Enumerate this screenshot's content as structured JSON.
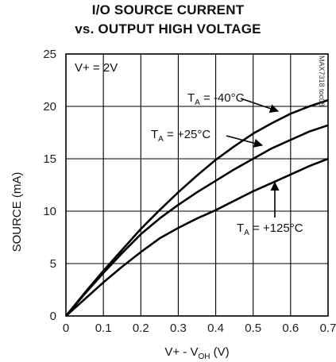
{
  "chart_data": {
    "type": "line",
    "title_line1": "I/O SOURCE CURRENT",
    "title_line2": "vs. OUTPUT HIGH VOLTAGE",
    "xlabel_prefix": "V+ - V",
    "xlabel_sub": "OH",
    "xlabel_suffix": " (V)",
    "ylabel": "SOURCE (mA)",
    "condition": "V+ = 2V",
    "code": "MAX7318 toc08",
    "xlim": [
      0,
      0.7
    ],
    "ylim": [
      0,
      25
    ],
    "grid": true,
    "xticks": [
      0,
      0.1,
      0.2,
      0.3,
      0.4,
      0.5,
      0.6,
      0.7
    ],
    "xtick_labels": [
      "0",
      "0.1",
      "0.2",
      "0.3",
      "0.4",
      "0.5",
      "0.6",
      "0.7"
    ],
    "yticks": [
      0,
      5,
      10,
      15,
      20,
      25
    ],
    "ytick_labels": [
      "0",
      "5",
      "10",
      "15",
      "20",
      "25"
    ],
    "series": [
      {
        "name": "T_A = -40°C",
        "label_main": "T",
        "label_sub": "A",
        "label_rest": " = -40°C",
        "x": [
          0,
          0.05,
          0.1,
          0.15,
          0.2,
          0.25,
          0.3,
          0.35,
          0.4,
          0.45,
          0.5,
          0.55,
          0.6,
          0.65,
          0.7
        ],
        "y": [
          0,
          2.2,
          4.3,
          6.3,
          8.3,
          10.1,
          11.8,
          13.4,
          14.9,
          16.2,
          17.4,
          18.4,
          19.3,
          20.0,
          20.6
        ]
      },
      {
        "name": "T_A = +25°C",
        "label_main": "T",
        "label_sub": "A",
        "label_rest": " = +25°C",
        "x": [
          0,
          0.05,
          0.1,
          0.15,
          0.2,
          0.25,
          0.3,
          0.35,
          0.4,
          0.45,
          0.5,
          0.55,
          0.6,
          0.65,
          0.7
        ],
        "y": [
          0,
          2.1,
          4.1,
          6.0,
          7.8,
          9.3,
          10.6,
          11.8,
          12.9,
          14.0,
          15.0,
          16.0,
          16.8,
          17.6,
          18.2
        ]
      },
      {
        "name": "T_A = +125°C",
        "label_main": "T",
        "label_sub": "A",
        "label_rest": " = +125°C",
        "x": [
          0,
          0.05,
          0.1,
          0.15,
          0.2,
          0.25,
          0.3,
          0.35,
          0.4,
          0.45,
          0.5,
          0.55,
          0.6,
          0.65,
          0.7
        ],
        "y": [
          0,
          1.6,
          3.2,
          4.7,
          6.1,
          7.4,
          8.4,
          9.3,
          10.1,
          11.0,
          11.9,
          12.7,
          13.5,
          14.3,
          15.0
        ]
      }
    ]
  }
}
